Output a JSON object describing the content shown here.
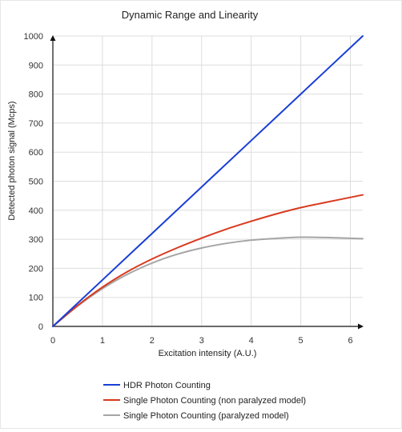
{
  "chart_data": {
    "type": "line",
    "title": "Dynamic Range and Linearity",
    "xlabel": "Excitation intensity (A.U.)",
    "ylabel": "Detected photon signal (Mcps)",
    "xlim": [
      0,
      6.25
    ],
    "ylim": [
      0,
      1000
    ],
    "xticks": [
      0,
      1,
      2,
      3,
      4,
      5,
      6
    ],
    "yticks": [
      0,
      100,
      200,
      300,
      400,
      500,
      600,
      700,
      800,
      900,
      1000
    ],
    "grid": true,
    "legend": "bottom",
    "series": [
      {
        "name": "HDR Photon Counting",
        "color": "#1a3fd6",
        "x": [
          0,
          1,
          2,
          3,
          4,
          5,
          6.25
        ],
        "y": [
          0,
          160,
          320,
          480,
          640,
          800,
          1000
        ]
      },
      {
        "name": "Single Photon Counting (non paralyzed model)",
        "color": "#d93a1f",
        "x": [
          0,
          0.5,
          1,
          1.5,
          2,
          2.5,
          3,
          3.5,
          4,
          4.5,
          5,
          5.5,
          6.25
        ],
        "y": [
          0,
          72,
          135,
          188,
          232,
          270,
          304,
          335,
          362,
          387,
          409,
          427,
          453
        ]
      },
      {
        "name": "Single Photon Counting (paralyzed model)",
        "color": "#a5a5a5",
        "x": [
          0,
          0.5,
          1,
          1.5,
          2,
          2.5,
          3,
          3.5,
          4,
          4.5,
          5,
          5.5,
          6.25
        ],
        "y": [
          0,
          70,
          130,
          179,
          218,
          248,
          270,
          286,
          297,
          303,
          307,
          306,
          302
        ]
      }
    ]
  }
}
